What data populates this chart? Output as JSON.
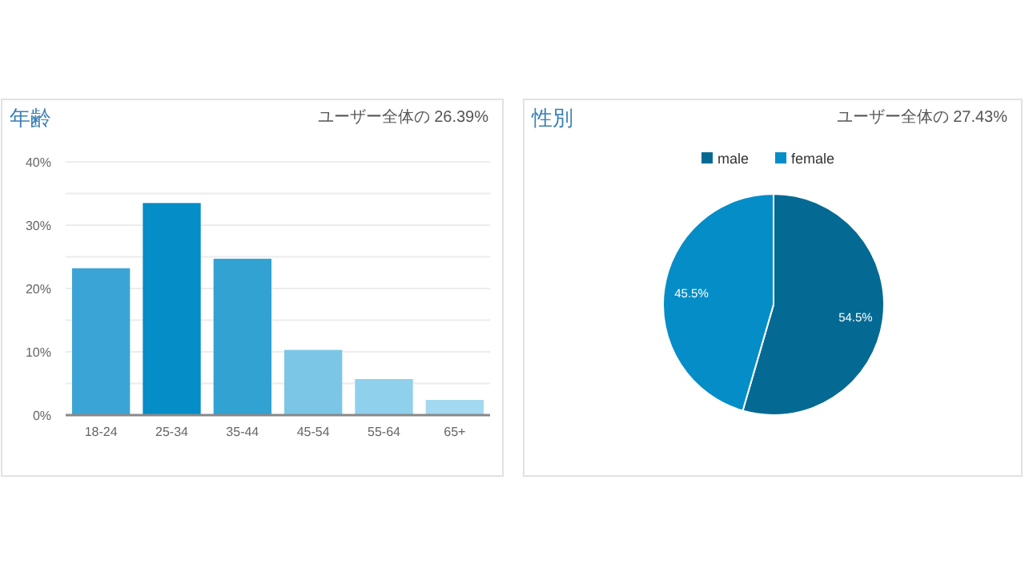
{
  "chart_data": [
    {
      "type": "bar",
      "title": "年齢",
      "subtitle": "ユーザー全体の 26.39%",
      "categories": [
        "18-24",
        "25-34",
        "35-44",
        "45-54",
        "55-64",
        "65+"
      ],
      "values": [
        23.2,
        33.5,
        24.7,
        10.3,
        5.7,
        2.4
      ],
      "colors": [
        "#3ba4d6",
        "#058dc7",
        "#31a2d2",
        "#7bc6e6",
        "#8fd0ec",
        "#a3d9f0"
      ],
      "ylim": [
        0,
        40
      ],
      "yticks": [
        {
          "value": 0,
          "label": "0%"
        },
        {
          "value": 5,
          "label": null
        },
        {
          "value": 10,
          "label": "10%"
        },
        {
          "value": 15,
          "label": null
        },
        {
          "value": 20,
          "label": "20%"
        },
        {
          "value": 25,
          "label": null
        },
        {
          "value": 30,
          "label": "30%"
        },
        {
          "value": 35,
          "label": null
        },
        {
          "value": 40,
          "label": "40%"
        }
      ],
      "grid": "y"
    },
    {
      "type": "pie",
      "title": "性別",
      "subtitle": "ユーザー全体の 27.43%",
      "categories": [
        "male",
        "female"
      ],
      "values": [
        54.5,
        45.5
      ],
      "colors": [
        "#056a93",
        "#058dc7"
      ],
      "value_labels": [
        "54.5%",
        "45.5%"
      ],
      "legend": "top"
    }
  ]
}
